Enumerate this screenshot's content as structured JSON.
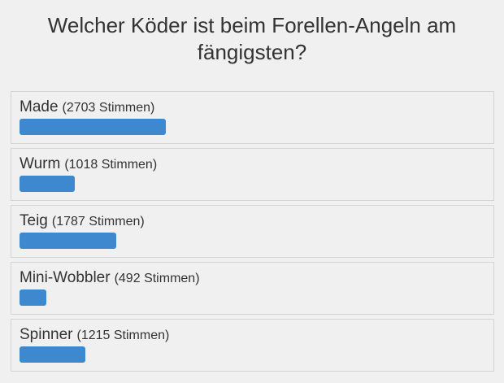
{
  "poll": {
    "question": "Welcher Köder ist beim Forellen-Angeln am fängigsten?",
    "votes_word": "Stimmen",
    "bar_color": "#3e88cf",
    "options": [
      {
        "label": "Made",
        "votes": 2703
      },
      {
        "label": "Wurm",
        "votes": 1018
      },
      {
        "label": "Teig",
        "votes": 1787
      },
      {
        "label": "Mini-Wobbler",
        "votes": 492
      },
      {
        "label": "Spinner",
        "votes": 1215
      }
    ]
  }
}
